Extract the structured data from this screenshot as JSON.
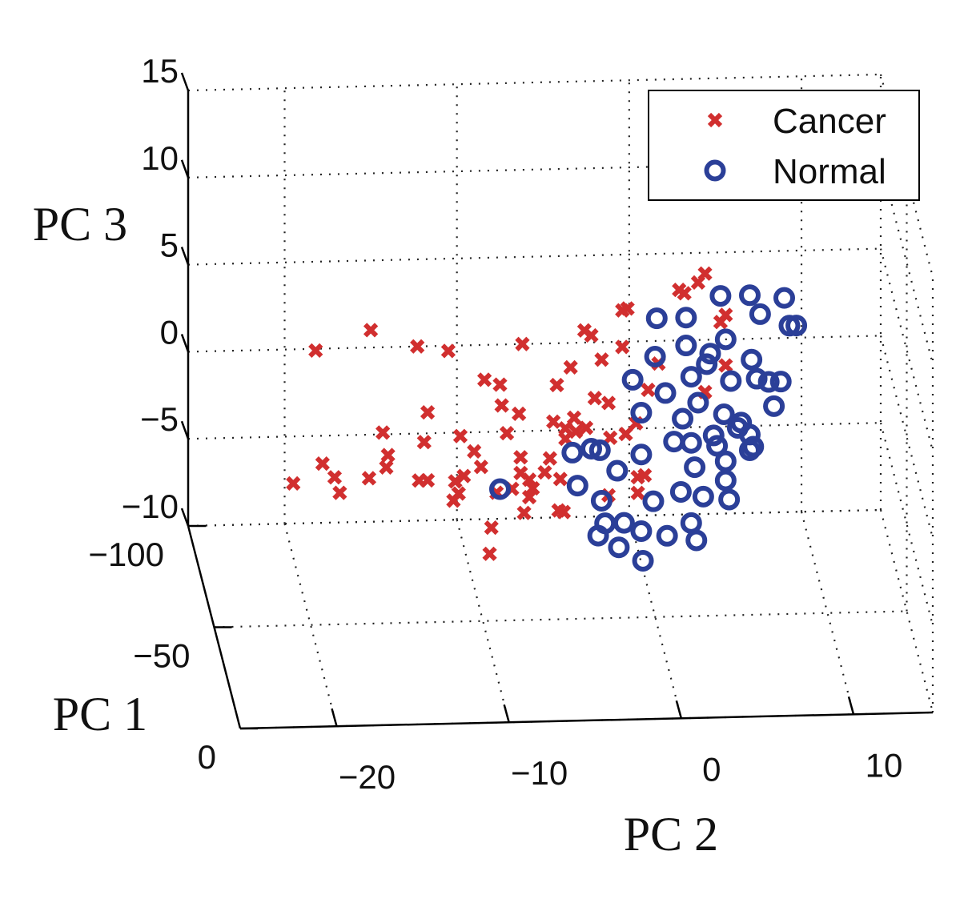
{
  "chart_data": {
    "type": "scatter3d",
    "xlabel": "PC 2",
    "ylabel": "PC 3",
    "zlabel": "PC 1",
    "xlim": [
      -25.6,
      14.6
    ],
    "xticks": [
      {
        "value": -20,
        "label": "−20"
      },
      {
        "value": -10,
        "label": "−10"
      },
      0,
      10
    ],
    "ylim": [
      -10,
      15
    ],
    "yticks": [
      {
        "value": -10,
        "label": "−10"
      },
      {
        "value": -5,
        "label": "−5"
      },
      0,
      5,
      10,
      15
    ],
    "zlim": [
      -100,
      0
    ],
    "zticks": [
      {
        "value": -100,
        "label": "−100"
      },
      {
        "value": -50,
        "label": "−50"
      },
      0
    ],
    "grid": true,
    "legend": "upper right",
    "series": [
      {
        "name": "Cancer",
        "color": "#d12f2f",
        "marker": "x",
        "x": [
          -18.2,
          -15.0,
          -12.3,
          -10.5,
          -6.2,
          -19.5,
          -17.8,
          -17.1,
          -16.8,
          -14.3,
          -14.0,
          -14.1,
          -15.1,
          -11.7,
          -11.9,
          -12.2,
          -11.7,
          -9.8,
          -9.0,
          -10.1,
          -9.6,
          -10.2,
          -9.9,
          -8.4,
          -7.5,
          -7.4,
          -6.4,
          -7.1,
          -8.6,
          -8.0,
          -8.1,
          -6.1,
          -4.4,
          -3.2,
          -4.2,
          -3.4,
          -2.0,
          -2.2,
          -2.6,
          -1.2,
          -0.4,
          -0.1,
          -0.4,
          -1.6,
          2.9,
          4.4,
          5.6,
          5.6,
          -0.2,
          -1.1,
          0.5,
          0.9,
          0.5,
          -4.1,
          -3.8,
          -4.6,
          -6.8,
          -5.8,
          -6.3,
          -5.6,
          -3.7,
          -3.1,
          -2.5,
          -4.0,
          -4.9,
          -1.2,
          -3.7,
          -6.3,
          -5.8,
          -7.7,
          3.2,
          4.0,
          5.3,
          1.7,
          1.1,
          4.4,
          0.4
        ],
        "values": [
          -0.1,
          1.0,
          0.0,
          -0.3,
          0.0,
          -7.7,
          -6.6,
          -7.4,
          -8.3,
          -4.9,
          -6.2,
          -6.9,
          -7.5,
          -3.8,
          -5.5,
          -7.7,
          -7.7,
          -5.2,
          -6.1,
          -7.8,
          -7.5,
          -8.9,
          -8.5,
          -2.0,
          -2.3,
          -3.5,
          -4.0,
          -5.1,
          -7.0,
          -10.5,
          -12.0,
          -9.7,
          -4.5,
          -4.3,
          -2.4,
          -1.4,
          -3.2,
          0.4,
          0.7,
          -3.5,
          1.8,
          1.9,
          -0.3,
          -1.0,
          2.9,
          3.8,
          1.4,
          -1.5,
          -5.3,
          -5.5,
          -8.7,
          -7.7,
          -7.8,
          -9.6,
          -9.7,
          -6.6,
          -8.3,
          -8.8,
          -7.4,
          -8.3,
          -4.9,
          -5.1,
          -4.9,
          -7.8,
          -7.4,
          -8.8,
          -5.5,
          -6.5,
          -7.8,
          -8.5,
          2.7,
          3.3,
          1.0,
          -1.3,
          -2.8,
          -3.0,
          -4.7
        ]
      },
      {
        "name": "Normal",
        "color": "#2b3f98",
        "marker": "o",
        "x": [
          9.8,
          10.9,
          5.3,
          7.0,
          9.0,
          1.6,
          3.3,
          7.6,
          9.3,
          9.7,
          3.3,
          5.6,
          4.7,
          1.5,
          7.1,
          0.2,
          3.6,
          4.5,
          5.9,
          7.4,
          8.8,
          2.1,
          4.0,
          0.7,
          3.1,
          5.5,
          8.4,
          6.5,
          7.0,
          4.9,
          3.6,
          2.6,
          -1.7,
          -3.3,
          -2.2,
          -0.7,
          0.7,
          5.1,
          7.2,
          5.6,
          3.8,
          -7.5,
          -3.0,
          -1.6,
          3.0,
          4.3,
          5.8,
          5.6,
          1.4,
          -1.4,
          -0.3,
          0.7,
          -1.8,
          2.2,
          3.6,
          3.9,
          -0.6,
          0.8,
          7.0,
          6.3,
          8.1
        ],
        "values": [
          8.6,
          8.8,
          2.5,
          2.5,
          2.3,
          1.3,
          1.3,
          1.4,
          0.7,
          0.7,
          -0.3,
          0.0,
          -0.8,
          -0.9,
          -1.2,
          -2.2,
          -2.1,
          -1.4,
          -2.4,
          -2.3,
          -2.5,
          -3.0,
          -3.6,
          -4.1,
          -4.5,
          -4.3,
          -3.9,
          -4.8,
          -5.5,
          -5.5,
          -5.9,
          -5.8,
          -6.2,
          -6.3,
          -6.1,
          -7.4,
          -6.5,
          -6.1,
          -6.2,
          -7.0,
          -7.3,
          -8.3,
          -8.2,
          -9.1,
          -8.7,
          -9.0,
          -9.2,
          -8.1,
          -9.2,
          -10.4,
          -10.4,
          -10.9,
          -11.1,
          -11.2,
          -10.5,
          -11.5,
          -11.8,
          -12.6,
          -6.4,
          -5.1,
          -2.5
        ]
      }
    ]
  }
}
